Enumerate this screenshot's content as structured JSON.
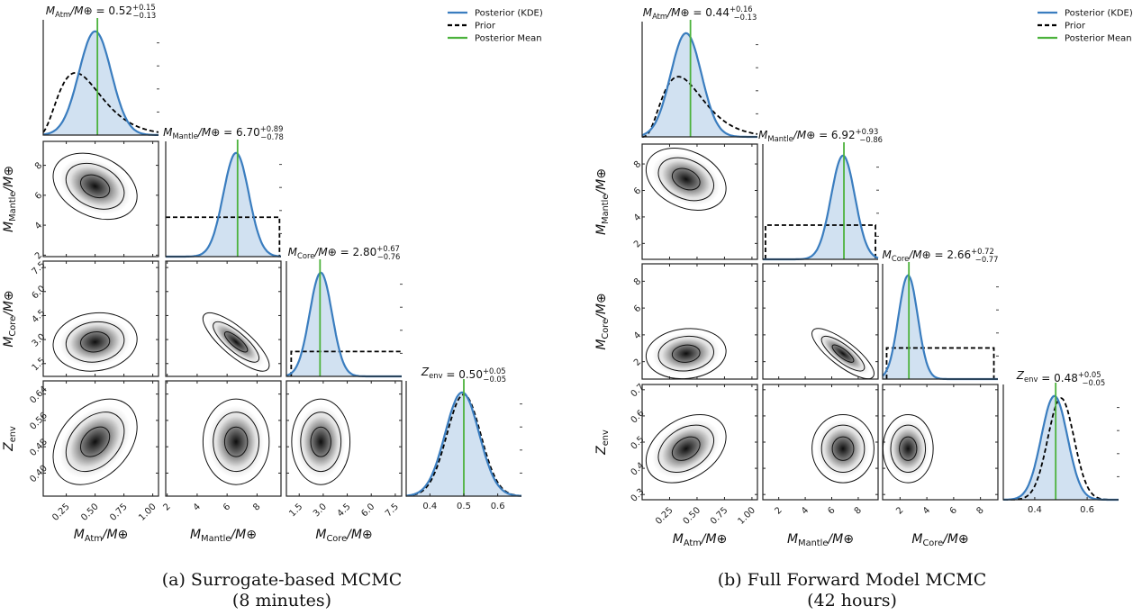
{
  "chart_data": [
    {
      "type": "corner",
      "caption": [
        "(a) Surrogate-based MCMC",
        "(8 minutes)"
      ],
      "legend": [
        {
          "label": "Posterior (KDE)",
          "style": "solid",
          "color": "#3a7dbf"
        },
        {
          "label": "Prior",
          "style": "dashed",
          "color": "#000000"
        },
        {
          "label": "Posterior Mean",
          "style": "solid",
          "color": "#4cb23c"
        }
      ],
      "params": [
        {
          "symbol": "M",
          "sub": "Atm",
          "suffix": "/M⊕",
          "range": [
            0.05,
            1.05
          ],
          "ticks": [
            0.25,
            0.5,
            0.75,
            1.0
          ],
          "tick_labels": [
            "0.25",
            "0.50",
            "0.75",
            "1.00"
          ],
          "summary": {
            "value": "0.52",
            "plus": "+0.15",
            "minus": "−0.13"
          },
          "posterior": {
            "mean": 0.52,
            "mode": 0.5,
            "sigma": 0.14
          },
          "prior": {
            "type": "gamma",
            "shape": 4,
            "scale": 0.11,
            "relative_peak": 0.6
          }
        },
        {
          "symbol": "M",
          "sub": "Mantle",
          "suffix": "/M⊕",
          "range": [
            1.9,
            9.6
          ],
          "ticks": [
            2,
            4,
            6,
            8
          ],
          "tick_labels": [
            "2",
            "4",
            "6",
            "8"
          ],
          "summary": {
            "value": "6.70",
            "plus": "+0.89",
            "minus": "−0.78"
          },
          "posterior": {
            "mean": 6.7,
            "mode": 6.6,
            "sigma": 0.85
          },
          "prior": {
            "type": "uniform",
            "low": 1.0,
            "high": 9.5,
            "relative_peak": 0.38
          }
        },
        {
          "symbol": "M",
          "sub": "Core",
          "suffix": "/M⊕",
          "range": [
            0.7,
            7.9
          ],
          "ticks": [
            1.5,
            3.0,
            4.5,
            6.0,
            7.5
          ],
          "tick_labels": [
            "1.5",
            "3.0",
            "4.5",
            "6.0",
            "7.5"
          ],
          "summary": {
            "value": "2.80",
            "plus": "+0.67",
            "minus": "−0.76"
          },
          "posterior": {
            "mean": 2.8,
            "mode": 2.85,
            "sigma": 0.7
          },
          "prior": {
            "type": "uniform",
            "low": 1.0,
            "high": 8.5,
            "relative_peak": 0.24
          }
        },
        {
          "symbol": "Z",
          "sub": "env",
          "suffix": "",
          "range": [
            0.33,
            0.68
          ],
          "ticks": [
            0.4,
            0.48,
            0.56,
            0.64
          ],
          "tick_labels": [
            "0.40",
            "0.48",
            "0.56",
            "0.64"
          ],
          "diag_range": [
            0.33,
            0.67
          ],
          "diag_ticks": [
            0.4,
            0.5,
            0.6
          ],
          "diag_tick_labels": [
            "0.4",
            "0.5",
            "0.6"
          ],
          "summary": {
            "value": "0.50",
            "plus": "+0.05",
            "minus": "−0.05"
          },
          "posterior": {
            "mean": 0.5,
            "mode": 0.495,
            "sigma": 0.05
          },
          "prior": {
            "type": "normal",
            "mean": 0.5,
            "sigma": 0.05,
            "relative_peak": 0.98
          }
        }
      ],
      "correlations": [
        [
          0,
          1,
          -0.3
        ],
        [
          0,
          2,
          0.1
        ],
        [
          1,
          2,
          -0.8
        ],
        [
          0,
          3,
          0.35
        ],
        [
          1,
          3,
          0.0
        ],
        [
          2,
          3,
          0.0
        ]
      ]
    },
    {
      "type": "corner",
      "caption": [
        "(b) Full Forward Model MCMC",
        "(42 hours)"
      ],
      "legend": [
        {
          "label": "Posterior (KDE)",
          "style": "solid",
          "color": "#3a7dbf"
        },
        {
          "label": "Prior",
          "style": "dashed",
          "color": "#000000"
        },
        {
          "label": "Posterior Mean",
          "style": "solid",
          "color": "#4cb23c"
        }
      ],
      "params": [
        {
          "symbol": "M",
          "sub": "Atm",
          "suffix": "/M⊕",
          "range": [
            0.0,
            1.05
          ],
          "ticks": [
            0.25,
            0.5,
            0.75,
            1.0
          ],
          "tick_labels": [
            "0.25",
            "0.50",
            "0.75",
            "1.00"
          ],
          "summary": {
            "value": "0.44",
            "plus": "+0.16",
            "minus": "−0.13"
          },
          "posterior": {
            "mean": 0.44,
            "mode": 0.4,
            "sigma": 0.14
          },
          "prior": {
            "type": "gamma",
            "shape": 4,
            "scale": 0.11,
            "relative_peak": 0.58
          }
        },
        {
          "symbol": "M",
          "sub": "Mantle",
          "suffix": "/M⊕",
          "range": [
            0.8,
            9.5
          ],
          "ticks": [
            2,
            4,
            6,
            8
          ],
          "tick_labels": [
            "2",
            "4",
            "6",
            "8"
          ],
          "summary": {
            "value": "6.92",
            "plus": "+0.93",
            "minus": "−0.86"
          },
          "posterior": {
            "mean": 6.92,
            "mode": 6.85,
            "sigma": 0.9
          },
          "prior": {
            "type": "uniform",
            "low": 1.0,
            "high": 9.3,
            "relative_peak": 0.33
          }
        },
        {
          "symbol": "M",
          "sub": "Core",
          "suffix": "/M⊕",
          "range": [
            0.7,
            9.3
          ],
          "ticks": [
            2,
            4,
            6,
            8
          ],
          "tick_labels": [
            "2",
            "4",
            "6",
            "8"
          ],
          "summary": {
            "value": "2.66",
            "plus": "+0.72",
            "minus": "−0.77"
          },
          "posterior": {
            "mean": 2.66,
            "mode": 2.6,
            "sigma": 0.72
          },
          "prior": {
            "type": "uniform",
            "low": 1.0,
            "high": 9.0,
            "relative_peak": 0.3
          }
        },
        {
          "symbol": "Z",
          "sub": "env",
          "suffix": "",
          "range": [
            0.28,
            0.72
          ],
          "ticks": [
            0.3,
            0.4,
            0.5,
            0.6,
            0.7
          ],
          "tick_labels": [
            "0.3",
            "0.4",
            "0.5",
            "0.6",
            "0.7"
          ],
          "diag_range": [
            0.28,
            0.72
          ],
          "diag_ticks": [
            0.4,
            0.6
          ],
          "diag_tick_labels": [
            "0.4",
            "0.6"
          ],
          "summary": {
            "value": "0.48",
            "plus": "+0.05",
            "minus": "−0.05"
          },
          "posterior": {
            "mean": 0.48,
            "mode": 0.475,
            "sigma": 0.05
          },
          "prior": {
            "type": "normal",
            "mean": 0.5,
            "sigma": 0.05,
            "relative_peak": 0.98
          }
        }
      ],
      "correlations": [
        [
          0,
          1,
          -0.3
        ],
        [
          0,
          2,
          0.1
        ],
        [
          1,
          2,
          -0.8
        ],
        [
          0,
          3,
          0.35
        ],
        [
          1,
          3,
          0.0
        ],
        [
          2,
          3,
          0.0
        ]
      ]
    }
  ]
}
